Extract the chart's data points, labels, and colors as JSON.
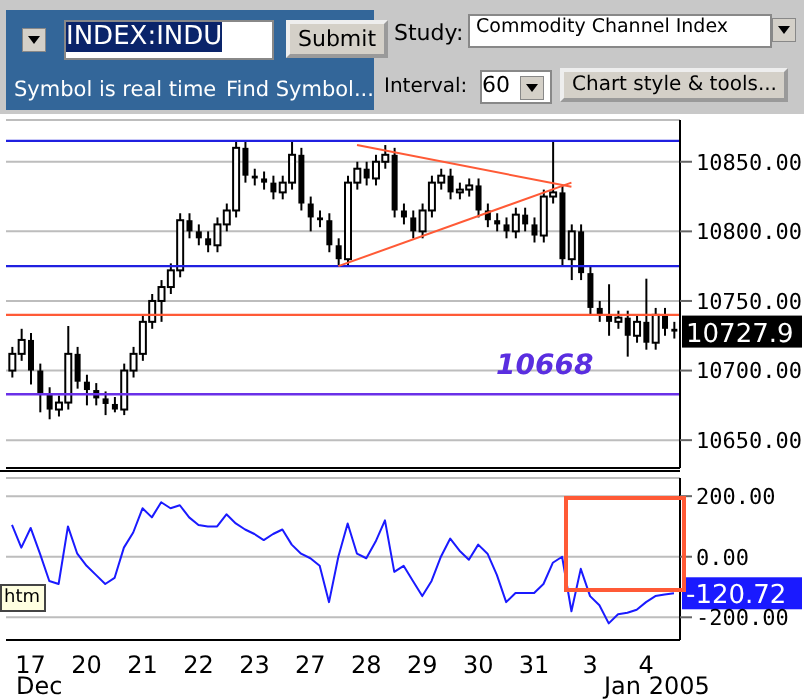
{
  "chart_data": [
    {
      "type": "candlestick",
      "categories": [
        null,
        null,
        "17",
        null,
        null,
        null,
        null,
        null,
        "20",
        null,
        null,
        null,
        null,
        null,
        "21",
        null,
        null,
        null,
        null,
        null,
        "22",
        null,
        null,
        null,
        null,
        null,
        "23",
        null,
        null,
        null,
        null,
        null,
        "27",
        null,
        null,
        null,
        null,
        null,
        "28",
        null,
        null,
        null,
        null,
        null,
        "29",
        null,
        null,
        null,
        null,
        null,
        "30",
        null,
        null,
        null,
        null,
        null,
        "31",
        null,
        null,
        null,
        null,
        null,
        "3",
        null,
        null,
        null,
        null,
        null,
        "4",
        null,
        null,
        null
      ],
      "ohlc": [
        [
          10700,
          10717,
          10695,
          10712
        ],
        [
          10712,
          10730,
          10707,
          10722
        ],
        [
          10722,
          10727,
          10690,
          10700
        ],
        [
          10700,
          10705,
          10670,
          10683
        ],
        [
          10683,
          10688,
          10665,
          10672
        ],
        [
          10672,
          10682,
          10667,
          10677
        ],
        [
          10677,
          10732,
          10672,
          10712
        ],
        [
          10712,
          10717,
          10687,
          10692
        ],
        [
          10692,
          10697,
          10675,
          10686
        ],
        [
          10686,
          10691,
          10675,
          10680
        ],
        [
          10680,
          10685,
          10668,
          10676
        ],
        [
          10676,
          10681,
          10670,
          10672
        ],
        [
          10672,
          10705,
          10668,
          10700
        ],
        [
          10700,
          10717,
          10695,
          10712
        ],
        [
          10712,
          10740,
          10707,
          10735
        ],
        [
          10735,
          10755,
          10730,
          10750
        ],
        [
          10750,
          10765,
          10735,
          10760
        ],
        [
          10760,
          10777,
          10755,
          10772
        ],
        [
          10772,
          10813,
          10767,
          10808
        ],
        [
          10808,
          10813,
          10795,
          10800
        ],
        [
          10800,
          10805,
          10790,
          10795
        ],
        [
          10795,
          10800,
          10785,
          10790
        ],
        [
          10790,
          10810,
          10785,
          10805
        ],
        [
          10805,
          10820,
          10800,
          10815
        ],
        [
          10815,
          10865,
          10810,
          10860
        ],
        [
          10860,
          10865,
          10835,
          10840
        ],
        [
          10840,
          10845,
          10833,
          10838
        ],
        [
          10838,
          10843,
          10830,
          10835
        ],
        [
          10835,
          10840,
          10823,
          10828
        ],
        [
          10828,
          10840,
          10823,
          10835
        ],
        [
          10835,
          10865,
          10830,
          10855
        ],
        [
          10855,
          10860,
          10815,
          10820
        ],
        [
          10820,
          10825,
          10800,
          10810
        ],
        [
          10810,
          10815,
          10803,
          10808
        ],
        [
          10808,
          10813,
          10785,
          10790
        ],
        [
          10790,
          10795,
          10775,
          10780
        ],
        [
          10780,
          10840,
          10775,
          10835
        ],
        [
          10835,
          10850,
          10830,
          10845
        ],
        [
          10845,
          10850,
          10833,
          10838
        ],
        [
          10838,
          10855,
          10833,
          10850
        ],
        [
          10850,
          10862,
          10845,
          10855
        ],
        [
          10855,
          10860,
          10810,
          10815
        ],
        [
          10815,
          10820,
          10805,
          10810
        ],
        [
          10810,
          10815,
          10795,
          10800
        ],
        [
          10800,
          10820,
          10795,
          10815
        ],
        [
          10815,
          10840,
          10810,
          10835
        ],
        [
          10835,
          10845,
          10830,
          10840
        ],
        [
          10840,
          10845,
          10823,
          10828
        ],
        [
          10828,
          10835,
          10823,
          10830
        ],
        [
          10830,
          10838,
          10825,
          10833
        ],
        [
          10833,
          10838,
          10810,
          10815
        ],
        [
          10815,
          10820,
          10803,
          10808
        ],
        [
          10808,
          10813,
          10800,
          10805
        ],
        [
          10805,
          10810,
          10795,
          10800
        ],
        [
          10800,
          10817,
          10795,
          10812
        ],
        [
          10812,
          10817,
          10800,
          10805
        ],
        [
          10805,
          10810,
          10792,
          10797
        ],
        [
          10797,
          10830,
          10792,
          10825
        ],
        [
          10825,
          10865,
          10820,
          10828
        ],
        [
          10828,
          10833,
          10775,
          10780
        ],
        [
          10780,
          10805,
          10765,
          10800
        ],
        [
          10800,
          10805,
          10765,
          10770
        ],
        [
          10770,
          10775,
          10740,
          10745
        ],
        [
          10745,
          10750,
          10735,
          10740
        ],
        [
          10740,
          10762,
          10725,
          10735
        ],
        [
          10735,
          10743,
          10730,
          10738
        ],
        [
          10738,
          10743,
          10710,
          10725
        ],
        [
          10725,
          10740,
          10720,
          10735
        ],
        [
          10735,
          10766,
          10715,
          10720
        ],
        [
          10720,
          10745,
          10715,
          10740
        ],
        [
          10740,
          10745,
          10725,
          10730
        ],
        [
          10730,
          10735,
          10723,
          10728
        ]
      ],
      "series": [
        {
          "type": "line",
          "color": "#ff5a36",
          "values": [
            null,
            null,
            null,
            null,
            null,
            null,
            null,
            null,
            null,
            null,
            null,
            null,
            null,
            null,
            null,
            null,
            null,
            null,
            null,
            null,
            null,
            null,
            null,
            null,
            null,
            null,
            null,
            null,
            null,
            null,
            null,
            null,
            null,
            null,
            null,
            null,
            null,
            10862,
            null,
            null,
            null,
            null,
            null,
            null,
            null,
            null,
            null,
            null,
            null,
            null,
            null,
            null,
            null,
            null,
            null,
            null,
            null,
            null,
            null,
            null,
            10832,
            null,
            null,
            null,
            null,
            null,
            null,
            null,
            null,
            null,
            null,
            null
          ]
        },
        {
          "type": "line",
          "color": "#ff5a36",
          "values": [
            null,
            null,
            null,
            null,
            null,
            null,
            null,
            null,
            null,
            null,
            null,
            null,
            null,
            null,
            null,
            null,
            null,
            null,
            null,
            null,
            null,
            null,
            null,
            null,
            null,
            null,
            null,
            null,
            null,
            null,
            null,
            null,
            null,
            null,
            null,
            10775,
            null,
            null,
            null,
            null,
            null,
            null,
            null,
            null,
            null,
            null,
            null,
            null,
            null,
            null,
            null,
            null,
            null,
            null,
            null,
            null,
            null,
            null,
            null,
            null,
            10835,
            null,
            null,
            null,
            null,
            null,
            null,
            null,
            null,
            null,
            null,
            null
          ]
        }
      ],
      "color": "#000000",
      "ylim": [
        10630,
        10880
      ],
      "yticks": [
        {
          "value": 10650,
          "label": "10650.00"
        },
        {
          "value": 10700,
          "label": "10700.00"
        },
        {
          "value": 10750,
          "label": "10750.00"
        },
        {
          "value": 10800,
          "label": "10800.00"
        },
        {
          "value": 10850,
          "label": "10850.00"
        }
      ],
      "grid": "y",
      "tick_labels": "y",
      "marker": "none",
      "ref_lines": [
        {
          "axis": "y",
          "value": 10865,
          "color": "#2020e0"
        },
        {
          "axis": "y",
          "value": 10775,
          "color": "#2020e0"
        },
        {
          "axis": "y",
          "value": 10740,
          "color": "#ff5a36"
        },
        {
          "axis": "y",
          "value": 10683,
          "color": "#6a30e8"
        }
      ],
      "annotations": [
        "INDEX:INDU",
        "Submit",
        "Symbol is real time",
        "Find Symbol...",
        "Study:",
        "Commodity Channel Index",
        "Interval:",
        "60",
        "Chart style & tools...",
        "10727.9",
        "10668"
      ]
    },
    {
      "type": "line",
      "categories": [
        null,
        null,
        "17",
        null,
        null,
        null,
        null,
        null,
        "20",
        null,
        null,
        null,
        null,
        null,
        "21",
        null,
        null,
        null,
        null,
        null,
        "22",
        null,
        null,
        null,
        null,
        null,
        "23",
        null,
        null,
        null,
        null,
        null,
        "27",
        null,
        null,
        null,
        null,
        null,
        "28",
        null,
        null,
        null,
        null,
        null,
        "29",
        null,
        null,
        null,
        null,
        null,
        "30",
        null,
        null,
        null,
        null,
        null,
        "31",
        null,
        null,
        null,
        null,
        null,
        "3",
        null,
        null,
        null,
        null,
        null,
        "4",
        null,
        null,
        null
      ],
      "series": [
        {
          "color": "#1a1aff",
          "values": [
            105,
            30,
            95,
            10,
            -80,
            -90,
            100,
            10,
            -30,
            -60,
            -90,
            -70,
            30,
            80,
            160,
            130,
            180,
            160,
            170,
            130,
            105,
            100,
            100,
            140,
            110,
            90,
            75,
            55,
            75,
            90,
            40,
            10,
            -5,
            -30,
            -150,
            0,
            110,
            10,
            -5,
            50,
            120,
            -50,
            -30,
            -80,
            -130,
            -80,
            0,
            60,
            20,
            -10,
            40,
            10,
            -60,
            -150,
            -120,
            -120,
            -120,
            -90,
            -20,
            0,
            -180,
            -40,
            -130,
            -160,
            -220,
            -190,
            -185,
            -175,
            -150,
            -130,
            -125,
            -120.72
          ]
        }
      ],
      "ylim": [
        -275,
        260
      ],
      "yticks": [
        {
          "value": -200,
          "label": "-200.00"
        },
        {
          "value": 0,
          "label": "0.00"
        },
        {
          "value": 200,
          "label": "200.00"
        }
      ],
      "grid": "y",
      "marker": "none",
      "annotations": [
        "htm",
        "-120.72",
        "Dec",
        "Jan 2005"
      ]
    }
  ]
}
